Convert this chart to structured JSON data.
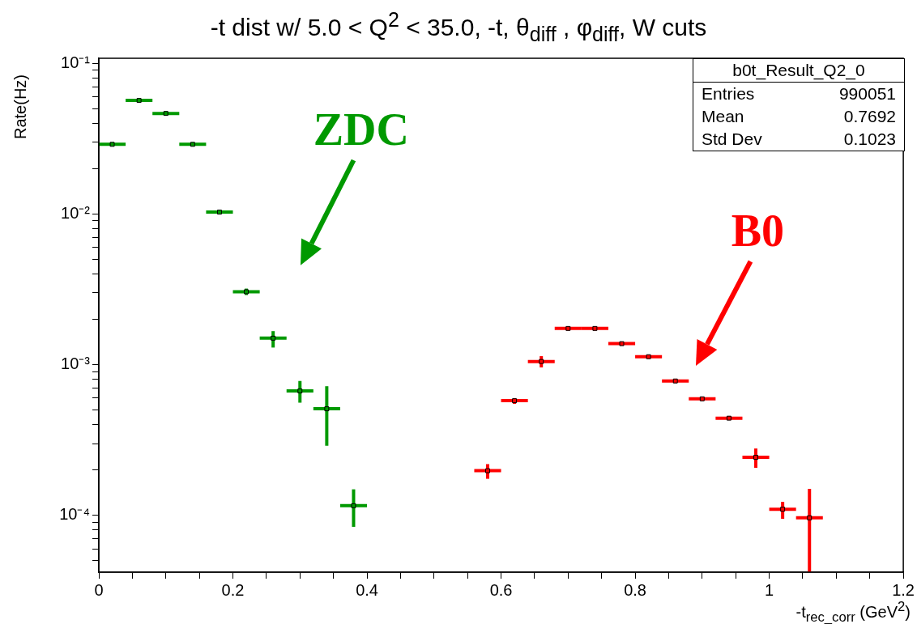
{
  "chart_data": {
    "type": "scatter",
    "title": "-t dist w/ 5.0 < Q$^{2}$ < 35.0, -t, θ$_{diff}$ , φ$_{diff}$, W cuts",
    "xlabel": "-t$_{rec_corr}$ (GeV$^{2}$)",
    "ylabel": "Rate(Hz)",
    "log": "y",
    "marker": "square",
    "xlim": [
      0,
      1.2
    ],
    "xticks": [
      0,
      {
        "value": 0.05,
        "label": null
      },
      {
        "value": 0.1,
        "label": null
      },
      {
        "value": 0.15,
        "label": null
      },
      0.2,
      {
        "value": 0.25,
        "label": null
      },
      {
        "value": 0.3,
        "label": null
      },
      {
        "value": 0.35,
        "label": null
      },
      0.4,
      {
        "value": 0.45,
        "label": null
      },
      {
        "value": 0.5,
        "label": null
      },
      {
        "value": 0.55,
        "label": null
      },
      0.6,
      {
        "value": 0.65,
        "label": null
      },
      {
        "value": 0.7,
        "label": null
      },
      {
        "value": 0.75,
        "label": null
      },
      0.8,
      {
        "value": 0.85,
        "label": null
      },
      {
        "value": 0.9,
        "label": null
      },
      {
        "value": 0.95,
        "label": null
      },
      1,
      {
        "value": 1.05,
        "label": null
      },
      {
        "value": 1.1,
        "label": null
      },
      {
        "value": 1.15,
        "label": null
      },
      1.2
    ],
    "ylim": [
      4.2e-05,
      0.108
    ],
    "yticks": [
      {
        "value": 5e-05,
        "label": null
      },
      {
        "value": 6e-05,
        "label": null
      },
      {
        "value": 7e-05,
        "label": null
      },
      {
        "value": 8e-05,
        "label": null
      },
      {
        "value": 9e-05,
        "label": null
      },
      {
        "value": 0.0001,
        "label": "10⁻⁴"
      },
      {
        "value": 0.0002,
        "label": null
      },
      {
        "value": 0.0003,
        "label": null
      },
      {
        "value": 0.0004,
        "label": null
      },
      {
        "value": 0.0005,
        "label": null
      },
      {
        "value": 0.0006,
        "label": null
      },
      {
        "value": 0.0007,
        "label": null
      },
      {
        "value": 0.0008,
        "label": null
      },
      {
        "value": 0.0009,
        "label": null
      },
      {
        "value": 0.001,
        "label": "10⁻³"
      },
      {
        "value": 0.002,
        "label": null
      },
      {
        "value": 0.003,
        "label": null
      },
      {
        "value": 0.004,
        "label": null
      },
      {
        "value": 0.005,
        "label": null
      },
      {
        "value": 0.006,
        "label": null
      },
      {
        "value": 0.007,
        "label": null
      },
      {
        "value": 0.008,
        "label": null
      },
      {
        "value": 0.009,
        "label": null
      },
      {
        "value": 0.01,
        "label": "10⁻²"
      },
      {
        "value": 0.02,
        "label": null
      },
      {
        "value": 0.03,
        "label": null
      },
      {
        "value": 0.04,
        "label": null
      },
      {
        "value": 0.05,
        "label": null
      },
      {
        "value": 0.06,
        "label": null
      },
      {
        "value": 0.07,
        "label": null
      },
      {
        "value": 0.08,
        "label": null
      },
      {
        "value": 0.09,
        "label": null
      },
      {
        "value": 0.1,
        "label": "10⁻¹"
      }
    ],
    "series": [
      {
        "name": "ZDC",
        "color": "#009900",
        "x": [
          0.02,
          0.06,
          0.1,
          0.14,
          0.18,
          0.22,
          0.26,
          0.3,
          0.34,
          0.38
        ],
        "values": [
          0.029,
          0.0567,
          0.0465,
          0.029,
          0.0103,
          0.00305,
          0.0015,
          0.00067,
          0.00051,
          0.000116
        ],
        "xerrors": [
          0.02,
          0.02,
          0.02,
          0.02,
          0.02,
          0.02,
          0.02,
          0.02,
          0.02,
          0.02
        ],
        "errors": [
          null,
          null,
          null,
          null,
          null,
          [
            0.0029,
            0.0032
          ],
          [
            0.0013,
            0.00167
          ],
          [
            0.00056,
            0.00078
          ],
          [
            0.00029,
            0.00072
          ],
          [
            8.4e-05,
            0.000149
          ]
        ]
      },
      {
        "name": "B0",
        "color": "#ff0000",
        "x": [
          0.58,
          0.62,
          0.66,
          0.7,
          0.74,
          0.78,
          0.82,
          0.86,
          0.9,
          0.94,
          0.98,
          1.02,
          1.06
        ],
        "values": [
          0.000198,
          0.000577,
          0.00105,
          0.00174,
          0.00174,
          0.00138,
          0.00113,
          0.00078,
          0.000594,
          0.000442,
          0.000243,
          0.00011,
          9.64e-05
        ],
        "xerrors": [
          0.02,
          0.02,
          0.02,
          0.02,
          0.02,
          0.02,
          0.02,
          0.02,
          0.02,
          0.02,
          0.02,
          0.02,
          0.02
        ],
        "errors": [
          [
            0.000175,
            0.000219
          ],
          [
            0.00055,
            0.0006
          ],
          [
            0.00096,
            0.00114
          ],
          null,
          null,
          null,
          null,
          null,
          null,
          null,
          [
            0.000207,
            0.000278
          ],
          [
            9.5e-05,
            0.000123
          ],
          [
            4.2e-05,
            0.00015
          ]
        ]
      }
    ],
    "annotations": [
      "b0t_Result_Q2_0",
      "Entries",
      "990051",
      "Mean",
      "0.7692",
      "Std Dev",
      "0.1023"
    ]
  }
}
